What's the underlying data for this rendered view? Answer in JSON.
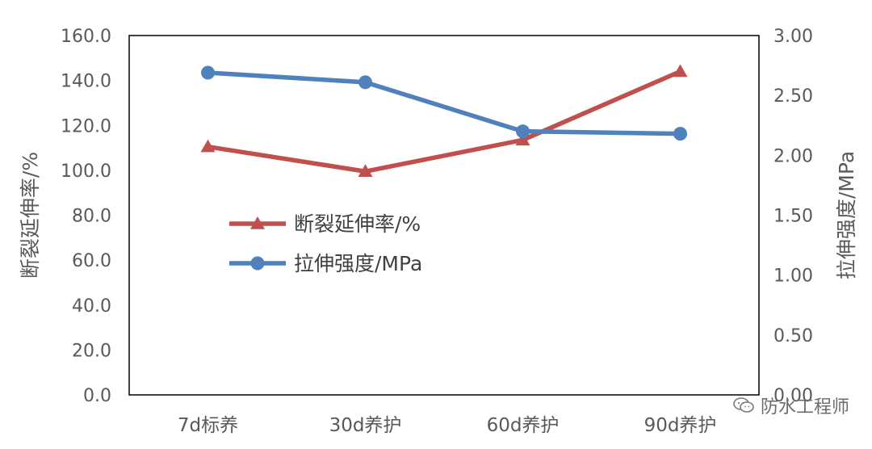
{
  "chart_data": {
    "type": "line",
    "categories": [
      "7d标养",
      "30d养护",
      "60d养护",
      "90d养护"
    ],
    "series": [
      {
        "name": "断裂延伸率/%",
        "axis": "left",
        "marker": "triangle",
        "color": "#C0504D",
        "values": [
          110.5,
          99.5,
          113.5,
          144.0
        ]
      },
      {
        "name": "拉伸强度/MPa",
        "axis": "right",
        "marker": "circle",
        "color": "#4F81BD",
        "values": [
          2.69,
          2.61,
          2.2,
          2.18
        ]
      }
    ],
    "left_axis": {
      "label": "断裂延伸率/%",
      "ylim": [
        0,
        160
      ],
      "ticks": [
        "0.0",
        "20.0",
        "40.0",
        "60.0",
        "80.0",
        "100.0",
        "120.0",
        "140.0",
        "160.0"
      ]
    },
    "right_axis": {
      "label": "拉伸强度/MPa",
      "ylim": [
        0,
        3
      ],
      "ticks": [
        "0.00",
        "0.50",
        "1.00",
        "1.50",
        "2.00",
        "2.50",
        "3.00"
      ]
    },
    "grid": false,
    "legend": "center-left"
  },
  "watermark": {
    "text": "防水工程师",
    "icon": "wechat-icon"
  }
}
